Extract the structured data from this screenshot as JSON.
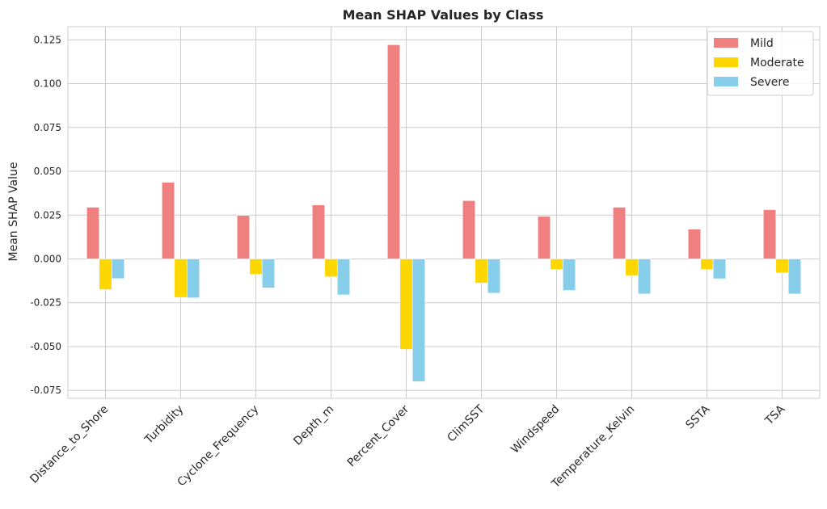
{
  "chart_data": {
    "type": "bar",
    "title": "Mean SHAP Values by Class",
    "xlabel": "",
    "ylabel": "Mean SHAP Value",
    "categories": [
      "Distance_to_Shore",
      "Turbidity",
      "Cyclone_Frequency",
      "Depth_m",
      "Percent_Cover",
      "ClimSST",
      "Windspeed",
      "Temperature_Kelvin",
      "SSTA",
      "TSA"
    ],
    "series": [
      {
        "name": "Mild",
        "color": "#f08080",
        "values": [
          0.0295,
          0.0437,
          0.0248,
          0.0308,
          0.1222,
          0.0333,
          0.0243,
          0.0295,
          0.017,
          0.0281
        ]
      },
      {
        "name": "Moderate",
        "color": "#ffd700",
        "values": [
          -0.0175,
          -0.022,
          -0.0088,
          -0.0102,
          -0.0516,
          -0.0138,
          -0.006,
          -0.0095,
          -0.006,
          -0.008
        ]
      },
      {
        "name": "Severe",
        "color": "#87ceeb",
        "values": [
          -0.0112,
          -0.0222,
          -0.0165,
          -0.0205,
          -0.07,
          -0.0195,
          -0.018,
          -0.02,
          -0.0113,
          -0.02
        ]
      }
    ],
    "ylim": [
      -0.0795,
      0.1325
    ],
    "yticks": [
      "-0.075",
      "-0.050",
      "-0.025",
      "0.000",
      "0.025",
      "0.050",
      "0.075",
      "0.100",
      "0.125"
    ],
    "ytick_values": [
      -0.075,
      -0.05,
      -0.025,
      0,
      0.025,
      0.05,
      0.075,
      0.1,
      0.125
    ],
    "grid": true,
    "legend_position": "top-right"
  }
}
